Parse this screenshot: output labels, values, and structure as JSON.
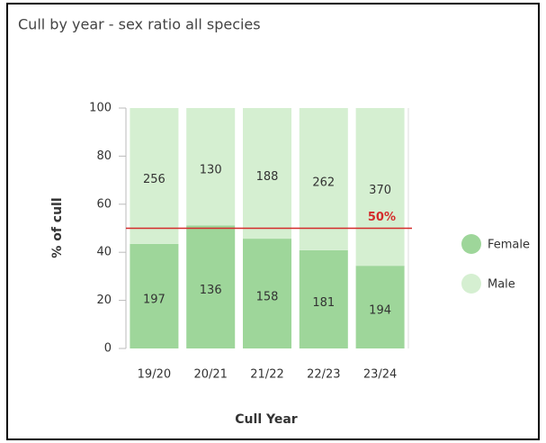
{
  "chart_data": {
    "type": "bar",
    "stacking": "percent",
    "title": "Cull by  year - sex ratio all species",
    "x_label": "Cull Year",
    "y_label": "% of cull",
    "categories": [
      "19/20",
      "20/21",
      "21/22",
      "22/23",
      "23/24"
    ],
    "series": [
      {
        "name": "Female",
        "color": "#9ed69a",
        "values": [
          197,
          136,
          158,
          181,
          194
        ]
      },
      {
        "name": "Male",
        "color": "#d5efd1",
        "values": [
          256,
          130,
          188,
          262,
          370
        ]
      }
    ],
    "ylim": [
      0,
      100
    ],
    "yticks": [
      0,
      20,
      40,
      60,
      80,
      100
    ],
    "reference_line": {
      "value": 50,
      "label": "50%",
      "color": "#d42b2b"
    },
    "legend": "right"
  }
}
